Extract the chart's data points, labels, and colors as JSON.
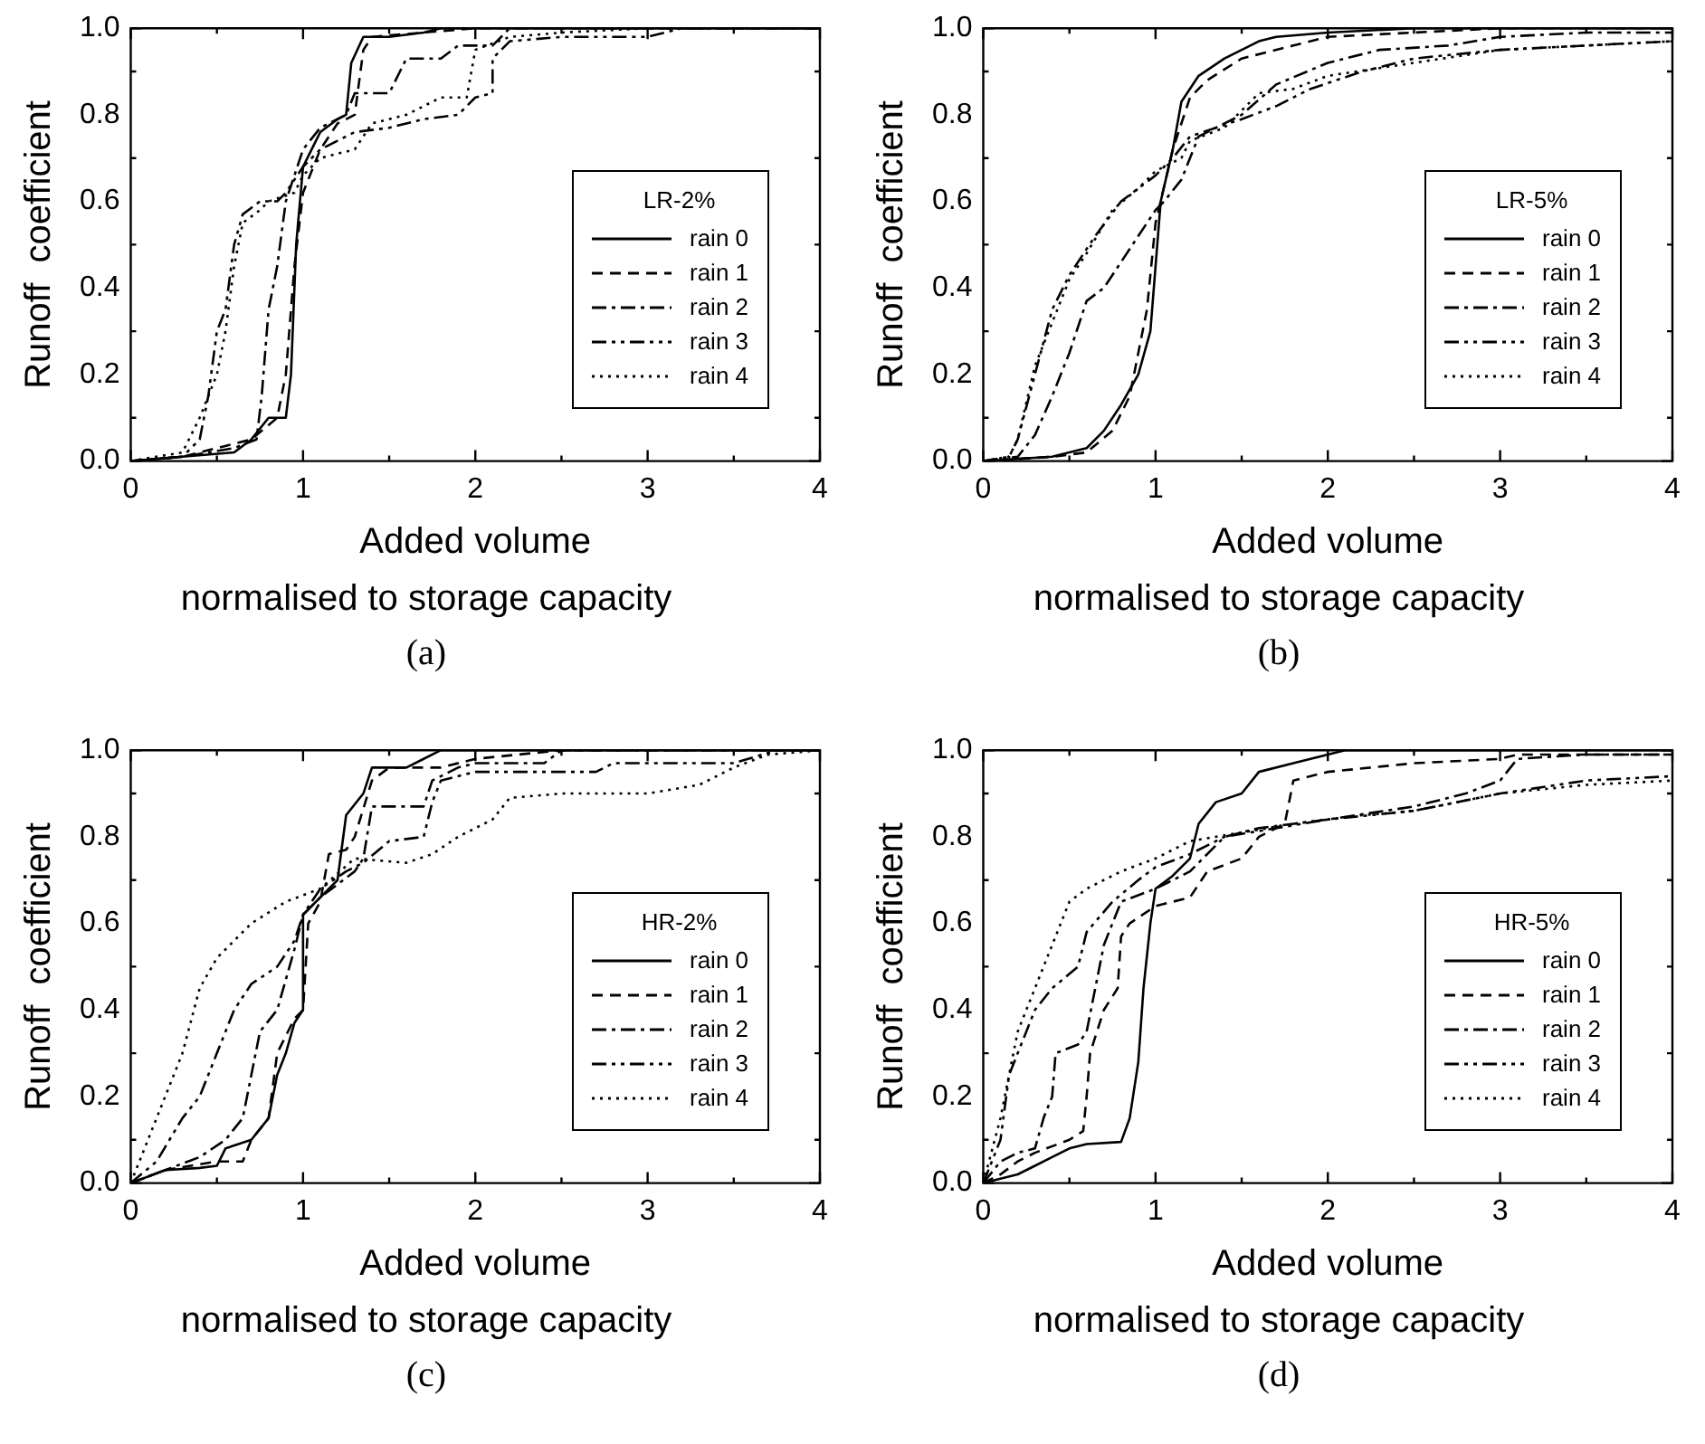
{
  "chart_data": [
    {
      "type": "line",
      "xlabel": "Added volume",
      "ylabel": "Runoff  coefficient",
      "legend_title": "LR-2%",
      "legend": "right",
      "marker": "none",
      "xlim": [
        0,
        4
      ],
      "xticks": [
        0,
        {
          "value": 0.5,
          "label": null
        },
        1,
        {
          "value": 1.5,
          "label": null
        },
        2,
        {
          "value": 2.5,
          "label": null
        },
        3,
        {
          "value": 3.5,
          "label": null
        },
        4
      ],
      "ylim": [
        0,
        1
      ],
      "yticks": [
        {
          "value": 0,
          "label": "0.0"
        },
        {
          "value": 0.1,
          "label": null
        },
        0.2,
        {
          "value": 0.3,
          "label": null
        },
        0.4,
        {
          "value": 0.5,
          "label": null
        },
        0.6,
        {
          "value": 0.7,
          "label": null
        },
        0.8,
        {
          "value": 0.9,
          "label": null
        },
        {
          "value": 1,
          "label": "1.0"
        }
      ],
      "annotations": [
        "normalised to storage capacity",
        "(a)"
      ],
      "series": [
        {
          "name": "rain 0",
          "color": "#000000",
          "line_style": "solid",
          "x": [
            0,
            0.3,
            0.6,
            0.7,
            0.8,
            0.9,
            0.93,
            0.96,
            1.0,
            1.05,
            1.1,
            1.2,
            1.25,
            1.28,
            1.35,
            1.5,
            1.7,
            1.8,
            4
          ],
          "values": [
            0,
            0.01,
            0.02,
            0.05,
            0.1,
            0.1,
            0.2,
            0.5,
            0.68,
            0.72,
            0.76,
            0.79,
            0.8,
            0.92,
            0.98,
            0.98,
            0.99,
            1.0,
            1.0
          ]
        },
        {
          "name": "rain 1",
          "color": "#000000",
          "line_style": "dashed",
          "x": [
            0,
            0.3,
            0.5,
            0.7,
            0.85,
            0.9,
            0.95,
            1.0,
            1.1,
            1.2,
            1.3,
            1.35,
            1.4,
            1.7,
            2.0,
            4
          ],
          "values": [
            0,
            0.01,
            0.03,
            0.05,
            0.1,
            0.2,
            0.45,
            0.62,
            0.72,
            0.78,
            0.8,
            0.95,
            0.98,
            0.99,
            1.0,
            1.0
          ]
        },
        {
          "name": "rain 2",
          "color": "#000000",
          "line_style": "dashdot",
          "x": [
            0,
            0.3,
            0.6,
            0.73,
            0.76,
            0.8,
            0.85,
            0.9,
            1.0,
            1.1,
            1.25,
            1.3,
            1.5,
            1.6,
            1.8,
            1.9,
            2.1,
            2.2,
            4
          ],
          "values": [
            0,
            0.01,
            0.03,
            0.05,
            0.15,
            0.35,
            0.45,
            0.6,
            0.72,
            0.77,
            0.8,
            0.85,
            0.85,
            0.93,
            0.93,
            0.96,
            0.96,
            1.0,
            1.0
          ]
        },
        {
          "name": "rain 3",
          "color": "#000000",
          "line_style": "dashdotdot",
          "x": [
            0,
            0.3,
            0.4,
            0.45,
            0.5,
            0.55,
            0.6,
            0.65,
            0.75,
            0.85,
            0.9,
            1.0,
            1.1,
            1.3,
            1.5,
            1.7,
            1.9,
            2.0,
            2.1,
            2.1,
            2.2,
            2.5,
            3.0,
            3.2,
            4
          ],
          "values": [
            0,
            0.01,
            0.05,
            0.15,
            0.3,
            0.35,
            0.5,
            0.57,
            0.6,
            0.6,
            0.62,
            0.68,
            0.72,
            0.76,
            0.77,
            0.79,
            0.8,
            0.84,
            0.85,
            0.93,
            0.97,
            0.98,
            0.98,
            1.0,
            1.0
          ]
        },
        {
          "name": "rain 4",
          "color": "#000000",
          "line_style": "dotted",
          "x": [
            0,
            0.3,
            0.4,
            0.5,
            0.55,
            0.6,
            0.65,
            0.75,
            0.8,
            0.95,
            1.0,
            1.1,
            1.3,
            1.4,
            1.6,
            1.8,
            1.95,
            2.0,
            2.2,
            2.5,
            3,
            4
          ],
          "values": [
            0,
            0.02,
            0.1,
            0.2,
            0.3,
            0.45,
            0.55,
            0.58,
            0.6,
            0.62,
            0.66,
            0.7,
            0.72,
            0.78,
            0.8,
            0.84,
            0.84,
            0.95,
            0.98,
            0.99,
            1.0,
            1.0
          ]
        }
      ]
    },
    {
      "type": "line",
      "xlabel": "Added volume",
      "ylabel": "Runoff  coefficient",
      "legend_title": "LR-5%",
      "legend": "right",
      "marker": "none",
      "xlim": [
        0,
        4
      ],
      "xticks": [
        0,
        {
          "value": 0.5,
          "label": null
        },
        1,
        {
          "value": 1.5,
          "label": null
        },
        2,
        {
          "value": 2.5,
          "label": null
        },
        3,
        {
          "value": 3.5,
          "label": null
        },
        4
      ],
      "ylim": [
        0,
        1
      ],
      "yticks": [
        {
          "value": 0,
          "label": "0.0"
        },
        {
          "value": 0.1,
          "label": null
        },
        0.2,
        {
          "value": 0.3,
          "label": null
        },
        0.4,
        {
          "value": 0.5,
          "label": null
        },
        0.6,
        {
          "value": 0.7,
          "label": null
        },
        0.8,
        {
          "value": 0.9,
          "label": null
        },
        {
          "value": 1,
          "label": "1.0"
        }
      ],
      "annotations": [
        "normalised to storage capacity",
        "(b)"
      ],
      "series": [
        {
          "name": "rain 0",
          "color": "#000000",
          "line_style": "solid",
          "x": [
            0,
            0.4,
            0.5,
            0.6,
            0.7,
            0.8,
            0.9,
            0.97,
            1.0,
            1.03,
            1.1,
            1.15,
            1.25,
            1.4,
            1.6,
            1.7,
            2.0,
            2.5,
            4
          ],
          "values": [
            0,
            0.01,
            0.02,
            0.03,
            0.07,
            0.13,
            0.2,
            0.3,
            0.45,
            0.6,
            0.72,
            0.83,
            0.89,
            0.93,
            0.97,
            0.98,
            0.99,
            1.0,
            1.0
          ]
        },
        {
          "name": "rain 1",
          "color": "#000000",
          "line_style": "dashed",
          "x": [
            0,
            0.4,
            0.6,
            0.75,
            0.85,
            0.9,
            0.95,
            1.0,
            1.1,
            1.2,
            1.3,
            1.5,
            1.8,
            2.0,
            2.5,
            3,
            4
          ],
          "values": [
            0,
            0.01,
            0.02,
            0.07,
            0.15,
            0.25,
            0.35,
            0.55,
            0.72,
            0.84,
            0.88,
            0.93,
            0.96,
            0.98,
            0.99,
            1.0,
            1.0
          ]
        },
        {
          "name": "rain 2",
          "color": "#000000",
          "line_style": "dashdot",
          "x": [
            0,
            0.2,
            0.3,
            0.4,
            0.5,
            0.6,
            0.7,
            0.8,
            0.9,
            1.0,
            1.05,
            1.15,
            1.25,
            1.5,
            1.7,
            2.0,
            2.3,
            2.7,
            3.0,
            3.5,
            4
          ],
          "values": [
            0,
            0.01,
            0.06,
            0.15,
            0.25,
            0.37,
            0.4,
            0.46,
            0.52,
            0.58,
            0.6,
            0.65,
            0.75,
            0.8,
            0.87,
            0.92,
            0.95,
            0.96,
            0.98,
            0.99,
            0.99
          ]
        },
        {
          "name": "rain 3",
          "color": "#000000",
          "line_style": "dashdotdot",
          "x": [
            0,
            0.15,
            0.2,
            0.3,
            0.4,
            0.5,
            0.65,
            0.8,
            1.0,
            1.1,
            1.2,
            1.5,
            1.7,
            1.9,
            2.2,
            2.5,
            3.0,
            3.5,
            4
          ],
          "values": [
            0,
            0.01,
            0.05,
            0.2,
            0.35,
            0.43,
            0.52,
            0.6,
            0.66,
            0.7,
            0.75,
            0.79,
            0.82,
            0.86,
            0.9,
            0.93,
            0.95,
            0.96,
            0.97
          ]
        },
        {
          "name": "rain 4",
          "color": "#000000",
          "line_style": "dotted",
          "x": [
            0,
            0.15,
            0.2,
            0.3,
            0.4,
            0.5,
            0.6,
            0.75,
            0.9,
            1.0,
            1.15,
            1.2,
            1.4,
            1.6,
            1.8,
            2.0,
            2.5,
            3.0,
            3.5,
            4
          ],
          "values": [
            0,
            0.01,
            0.05,
            0.22,
            0.32,
            0.42,
            0.48,
            0.58,
            0.63,
            0.67,
            0.7,
            0.74,
            0.77,
            0.85,
            0.86,
            0.89,
            0.92,
            0.95,
            0.96,
            0.97
          ]
        }
      ]
    },
    {
      "type": "line",
      "xlabel": "Added volume",
      "ylabel": "Runoff  coefficient",
      "legend_title": "HR-2%",
      "legend": "right",
      "marker": "none",
      "xlim": [
        0,
        4
      ],
      "xticks": [
        0,
        {
          "value": 0.5,
          "label": null
        },
        1,
        {
          "value": 1.5,
          "label": null
        },
        2,
        {
          "value": 2.5,
          "label": null
        },
        3,
        {
          "value": 3.5,
          "label": null
        },
        4
      ],
      "ylim": [
        0,
        1
      ],
      "yticks": [
        {
          "value": 0,
          "label": "0.0"
        },
        {
          "value": 0.1,
          "label": null
        },
        0.2,
        {
          "value": 0.3,
          "label": null
        },
        0.4,
        {
          "value": 0.5,
          "label": null
        },
        0.6,
        {
          "value": 0.7,
          "label": null
        },
        0.8,
        {
          "value": 0.9,
          "label": null
        },
        {
          "value": 1,
          "label": "1.0"
        }
      ],
      "annotations": [
        "normalised to storage capacity",
        "(c)"
      ],
      "series": [
        {
          "name": "rain 0",
          "color": "#000000",
          "line_style": "solid",
          "x": [
            0,
            0.2,
            0.4,
            0.5,
            0.55,
            0.7,
            0.8,
            0.85,
            0.9,
            0.95,
            1.0,
            1.0,
            1.1,
            1.2,
            1.25,
            1.35,
            1.4,
            1.6,
            1.7,
            1.8,
            4
          ],
          "values": [
            0,
            0.03,
            0.035,
            0.04,
            0.08,
            0.1,
            0.15,
            0.25,
            0.3,
            0.37,
            0.4,
            0.62,
            0.66,
            0.7,
            0.85,
            0.9,
            0.96,
            0.96,
            0.98,
            1.0,
            1.0
          ]
        },
        {
          "name": "rain 1",
          "color": "#000000",
          "line_style": "dashed",
          "x": [
            0,
            0.2,
            0.5,
            0.65,
            0.7,
            0.8,
            0.85,
            0.95,
            1.0,
            1.03,
            1.1,
            1.15,
            1.25,
            1.3,
            1.4,
            1.5,
            1.8,
            2.0,
            2.5,
            4
          ],
          "values": [
            0,
            0.03,
            0.05,
            0.05,
            0.1,
            0.15,
            0.3,
            0.38,
            0.4,
            0.6,
            0.65,
            0.76,
            0.77,
            0.8,
            0.93,
            0.96,
            0.96,
            0.98,
            1.0,
            1.0
          ]
        },
        {
          "name": "rain 2",
          "color": "#000000",
          "line_style": "dashdot",
          "x": [
            0,
            0.2,
            0.4,
            0.55,
            0.65,
            0.75,
            0.85,
            0.95,
            1.0,
            1.1,
            1.3,
            1.35,
            1.4,
            1.7,
            1.75,
            1.9,
            2.0,
            2.4,
            2.5,
            4
          ],
          "values": [
            0,
            0.03,
            0.06,
            0.1,
            0.15,
            0.35,
            0.4,
            0.54,
            0.62,
            0.66,
            0.72,
            0.75,
            0.87,
            0.87,
            0.93,
            0.96,
            0.97,
            0.97,
            1.0,
            1.0
          ]
        },
        {
          "name": "rain 3",
          "color": "#000000",
          "line_style": "dashdotdot",
          "x": [
            0,
            0.15,
            0.3,
            0.4,
            0.5,
            0.6,
            0.7,
            0.85,
            0.95,
            1.0,
            1.1,
            1.25,
            1.35,
            1.5,
            1.7,
            1.75,
            1.8,
            2.0,
            2.7,
            2.8,
            3.5,
            3.75,
            4
          ],
          "values": [
            0,
            0.05,
            0.15,
            0.2,
            0.3,
            0.4,
            0.46,
            0.5,
            0.56,
            0.62,
            0.68,
            0.72,
            0.74,
            0.79,
            0.8,
            0.88,
            0.93,
            0.95,
            0.95,
            0.97,
            0.97,
            1.0,
            1.0
          ]
        },
        {
          "name": "rain 4",
          "color": "#000000",
          "line_style": "dotted",
          "x": [
            0,
            0.1,
            0.2,
            0.3,
            0.4,
            0.5,
            0.7,
            0.9,
            1.1,
            1.3,
            1.6,
            1.75,
            1.9,
            2.1,
            2.2,
            2.5,
            3.0,
            3.3,
            3.5,
            3.7,
            4
          ],
          "values": [
            0,
            0.1,
            0.2,
            0.3,
            0.45,
            0.52,
            0.6,
            0.65,
            0.68,
            0.75,
            0.74,
            0.76,
            0.8,
            0.84,
            0.89,
            0.9,
            0.9,
            0.92,
            0.96,
            0.99,
            1.0
          ]
        }
      ]
    },
    {
      "type": "line",
      "xlabel": "Added volume",
      "ylabel": "Runoff  coefficient",
      "legend_title": "HR-5%",
      "legend": "right",
      "marker": "none",
      "xlim": [
        0,
        4
      ],
      "xticks": [
        0,
        {
          "value": 0.5,
          "label": null
        },
        1,
        {
          "value": 1.5,
          "label": null
        },
        2,
        {
          "value": 2.5,
          "label": null
        },
        3,
        {
          "value": 3.5,
          "label": null
        },
        4
      ],
      "ylim": [
        0,
        1
      ],
      "yticks": [
        {
          "value": 0,
          "label": "0.0"
        },
        {
          "value": 0.1,
          "label": null
        },
        0.2,
        {
          "value": 0.3,
          "label": null
        },
        0.4,
        {
          "value": 0.5,
          "label": null
        },
        0.6,
        {
          "value": 0.7,
          "label": null
        },
        0.8,
        {
          "value": 0.9,
          "label": null
        },
        {
          "value": 1,
          "label": "1.0"
        }
      ],
      "annotations": [
        "normalised to storage capacity",
        "(d)"
      ],
      "series": [
        {
          "name": "rain 0",
          "color": "#000000",
          "line_style": "solid",
          "x": [
            0,
            0.1,
            0.2,
            0.3,
            0.4,
            0.5,
            0.6,
            0.8,
            0.85,
            0.9,
            0.93,
            0.97,
            1.0,
            1.1,
            1.2,
            1.25,
            1.35,
            1.5,
            1.6,
            1.8,
            2.0,
            2.1,
            4
          ],
          "values": [
            0,
            0.01,
            0.02,
            0.04,
            0.06,
            0.08,
            0.09,
            0.095,
            0.15,
            0.28,
            0.45,
            0.6,
            0.68,
            0.71,
            0.75,
            0.83,
            0.88,
            0.9,
            0.95,
            0.97,
            0.99,
            1.0,
            1.0
          ]
        },
        {
          "name": "rain 1",
          "color": "#000000",
          "line_style": "dashed",
          "x": [
            0,
            0.1,
            0.2,
            0.3,
            0.5,
            0.58,
            0.6,
            0.62,
            0.7,
            0.78,
            0.8,
            0.85,
            1.0,
            1.2,
            1.3,
            1.5,
            1.6,
            1.75,
            1.8,
            2.0,
            2.5,
            3.0,
            3.1,
            4
          ],
          "values": [
            0,
            0.02,
            0.05,
            0.07,
            0.1,
            0.12,
            0.2,
            0.3,
            0.4,
            0.45,
            0.57,
            0.6,
            0.64,
            0.66,
            0.72,
            0.75,
            0.8,
            0.83,
            0.93,
            0.95,
            0.97,
            0.98,
            0.99,
            0.99
          ]
        },
        {
          "name": "rain 2",
          "color": "#000000",
          "line_style": "dashdot",
          "x": [
            0,
            0.1,
            0.2,
            0.3,
            0.35,
            0.4,
            0.42,
            0.55,
            0.6,
            0.7,
            0.8,
            1.0,
            1.2,
            1.4,
            1.6,
            2.0,
            2.5,
            2.8,
            3.0,
            3.1,
            3.5,
            4
          ],
          "values": [
            0,
            0.05,
            0.07,
            0.08,
            0.15,
            0.2,
            0.3,
            0.32,
            0.35,
            0.55,
            0.65,
            0.68,
            0.72,
            0.8,
            0.82,
            0.84,
            0.87,
            0.9,
            0.93,
            0.98,
            0.99,
            0.99
          ]
        },
        {
          "name": "rain 3",
          "color": "#000000",
          "line_style": "dashdotdot",
          "x": [
            0,
            0.1,
            0.15,
            0.2,
            0.3,
            0.4,
            0.55,
            0.6,
            0.75,
            0.9,
            1.0,
            1.2,
            1.4,
            1.7,
            2.0,
            2.5,
            3.0,
            3.5,
            4
          ],
          "values": [
            0,
            0.1,
            0.25,
            0.3,
            0.4,
            0.45,
            0.5,
            0.58,
            0.65,
            0.7,
            0.73,
            0.76,
            0.8,
            0.82,
            0.84,
            0.86,
            0.9,
            0.93,
            0.94
          ]
        },
        {
          "name": "rain 4",
          "color": "#000000",
          "line_style": "dotted",
          "x": [
            0,
            0.1,
            0.15,
            0.2,
            0.3,
            0.4,
            0.5,
            0.6,
            0.8,
            1.0,
            1.2,
            1.5,
            1.8,
            2.2,
            2.5,
            3.0,
            3.5,
            4
          ],
          "values": [
            0,
            0.15,
            0.25,
            0.35,
            0.45,
            0.55,
            0.65,
            0.68,
            0.72,
            0.75,
            0.79,
            0.81,
            0.83,
            0.85,
            0.86,
            0.9,
            0.92,
            0.93
          ]
        }
      ]
    }
  ]
}
